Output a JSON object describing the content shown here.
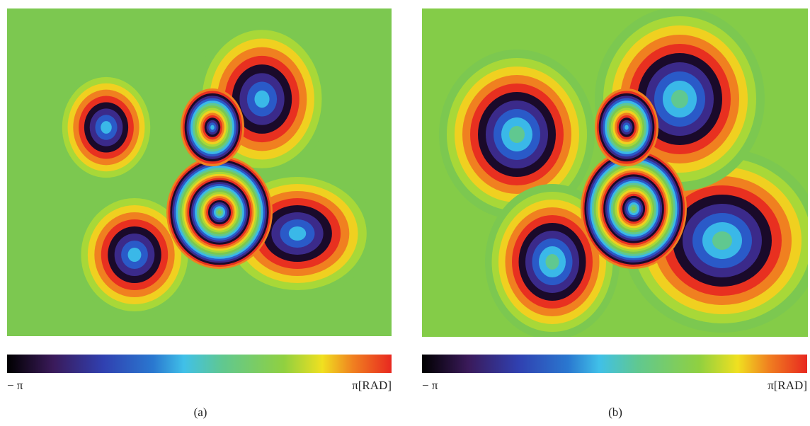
{
  "panels": [
    {
      "colorbar": {
        "min_label": "− π",
        "max_label": "π[RAD]"
      },
      "caption": "(a)"
    },
    {
      "colorbar": {
        "min_label": "− π",
        "max_label": "π[RAD]"
      },
      "caption": "(b)"
    }
  ]
}
